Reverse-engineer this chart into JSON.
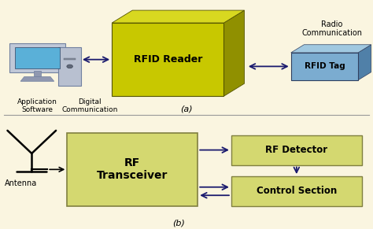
{
  "bg_color": "#faf5e0",
  "rfid_reader_front_color": "#c8c800",
  "rfid_reader_top_color": "#d8d820",
  "rfid_reader_right_color": "#909000",
  "rfid_tag_front_color": "#7bacd0",
  "rfid_tag_top_color": "#a0c8e0",
  "rfid_tag_right_color": "#5080a8",
  "transceiver_color": "#d4d870",
  "transceiver_edge_color": "#808040",
  "detector_color": "#d4d870",
  "detector_edge_color": "#808040",
  "control_color": "#d4d870",
  "control_edge_color": "#808040",
  "arrow_color": "#1a1a6e",
  "text_color": "#000000",
  "divider_color": "#999999",
  "label_a": "(a)",
  "label_b": "(b)",
  "rfid_reader_text": "RFID Reader",
  "rfid_tag_text": "RFID Tag",
  "radio_comm_text": "Radio\nCommunication",
  "app_software_text": "Application\nSoftware",
  "digital_comm_text": "Digital\nCommunication",
  "antenna_text": "Antenna",
  "rf_transceiver_text": "RF\nTransceiver",
  "rf_detector_text": "RF Detector",
  "control_section_text": "Control Section"
}
